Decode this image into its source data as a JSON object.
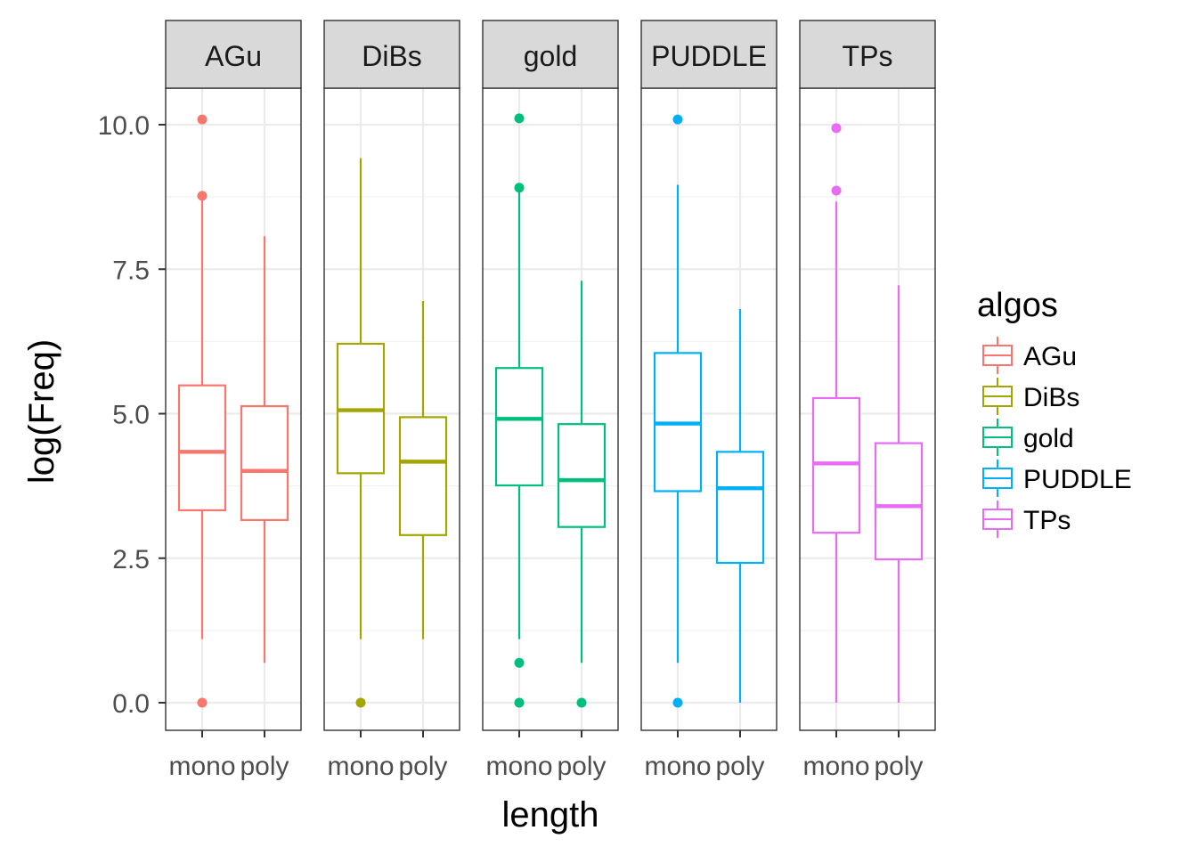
{
  "chart_data": {
    "type": "boxplot",
    "xlabel": "length",
    "ylabel": "log(Freq)",
    "ylim": [
      -0.45,
      10.7
    ],
    "yticks": [
      0.0,
      2.5,
      5.0,
      7.5,
      10.0
    ],
    "ytick_labels": [
      "0.0",
      "2.5",
      "5.0",
      "7.5",
      "10.0"
    ],
    "categories": [
      "mono",
      "poly"
    ],
    "grid": true,
    "legend": {
      "title": "algos",
      "position": "right",
      "entries": [
        "AGu",
        "DiBs",
        "gold",
        "PUDDLE",
        "TPs"
      ]
    },
    "facets": [
      {
        "name": "AGu",
        "color": "#F8766D",
        "boxes": [
          {
            "category": "mono",
            "whisker_low": 1.1,
            "q1": 3.33,
            "median": 4.34,
            "q3": 5.49,
            "whisker_high": 8.7,
            "outliers": [
              0.0,
              8.77,
              10.09
            ]
          },
          {
            "category": "poly",
            "whisker_low": 0.69,
            "q1": 3.16,
            "median": 4.01,
            "q3": 5.13,
            "whisker_high": 8.07,
            "outliers": []
          }
        ]
      },
      {
        "name": "DiBs",
        "color": "#A3A500",
        "boxes": [
          {
            "category": "mono",
            "whisker_low": 1.1,
            "q1": 3.97,
            "median": 5.06,
            "q3": 6.21,
            "whisker_high": 9.42,
            "outliers": [
              0.0
            ]
          },
          {
            "category": "poly",
            "whisker_low": 1.1,
            "q1": 2.9,
            "median": 4.17,
            "q3": 4.94,
            "whisker_high": 6.95,
            "outliers": []
          }
        ]
      },
      {
        "name": "gold",
        "color": "#00BF7D",
        "boxes": [
          {
            "category": "mono",
            "whisker_low": 1.1,
            "q1": 3.76,
            "median": 4.91,
            "q3": 5.79,
            "whisker_high": 8.83,
            "outliers": [
              0.0,
              0.69,
              8.91,
              10.11
            ]
          },
          {
            "category": "poly",
            "whisker_low": 0.69,
            "q1": 3.04,
            "median": 3.85,
            "q3": 4.82,
            "whisker_high": 7.3,
            "outliers": [
              0.0
            ]
          }
        ]
      },
      {
        "name": "PUDDLE",
        "color": "#00B0F6",
        "boxes": [
          {
            "category": "mono",
            "whisker_low": 0.69,
            "q1": 3.66,
            "median": 4.83,
            "q3": 6.05,
            "whisker_high": 8.96,
            "outliers": [
              0.0,
              10.09
            ]
          },
          {
            "category": "poly",
            "whisker_low": 0.0,
            "q1": 2.42,
            "median": 3.71,
            "q3": 4.34,
            "whisker_high": 6.81,
            "outliers": []
          }
        ]
      },
      {
        "name": "TPs",
        "color": "#E76BF3",
        "boxes": [
          {
            "category": "mono",
            "whisker_low": 0.0,
            "q1": 2.94,
            "median": 4.14,
            "q3": 5.27,
            "whisker_high": 8.67,
            "outliers": [
              8.86,
              9.94
            ]
          },
          {
            "category": "poly",
            "whisker_low": 0.0,
            "q1": 2.48,
            "median": 3.4,
            "q3": 4.49,
            "whisker_high": 7.22,
            "outliers": []
          }
        ]
      }
    ]
  }
}
